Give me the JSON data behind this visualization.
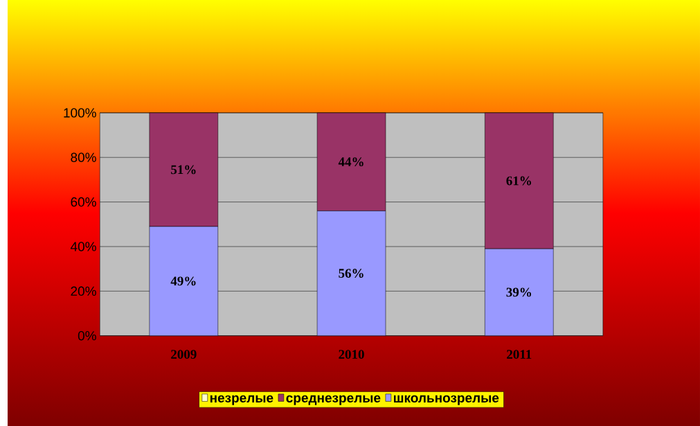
{
  "chart_data": {
    "type": "bar",
    "stacked": true,
    "categories": [
      "2009",
      "2010",
      "2011"
    ],
    "series": [
      {
        "name": "школьнозрелые",
        "color": "#9999ff",
        "values": [
          49,
          56,
          39
        ],
        "value_labels": [
          "49%",
          "56%",
          "39%"
        ]
      },
      {
        "name": "среднезрелые",
        "color": "#993366",
        "values": [
          51,
          44,
          61
        ],
        "value_labels": [
          "51%",
          "44%",
          "61%"
        ]
      },
      {
        "name": "незрелые",
        "color": "#ffffcc",
        "values": [
          0,
          0,
          0
        ],
        "value_labels": [
          null,
          null,
          null
        ]
      }
    ],
    "ylim": [
      0,
      100
    ],
    "yticks": [
      {
        "value": 0,
        "label": "0%"
      },
      {
        "value": 20,
        "label": "20%"
      },
      {
        "value": 40,
        "label": "40%"
      },
      {
        "value": 60,
        "label": "60%"
      },
      {
        "value": 80,
        "label": "80%"
      },
      {
        "value": 100,
        "label": "100%"
      }
    ],
    "grid": "y",
    "legend": "bottom"
  }
}
